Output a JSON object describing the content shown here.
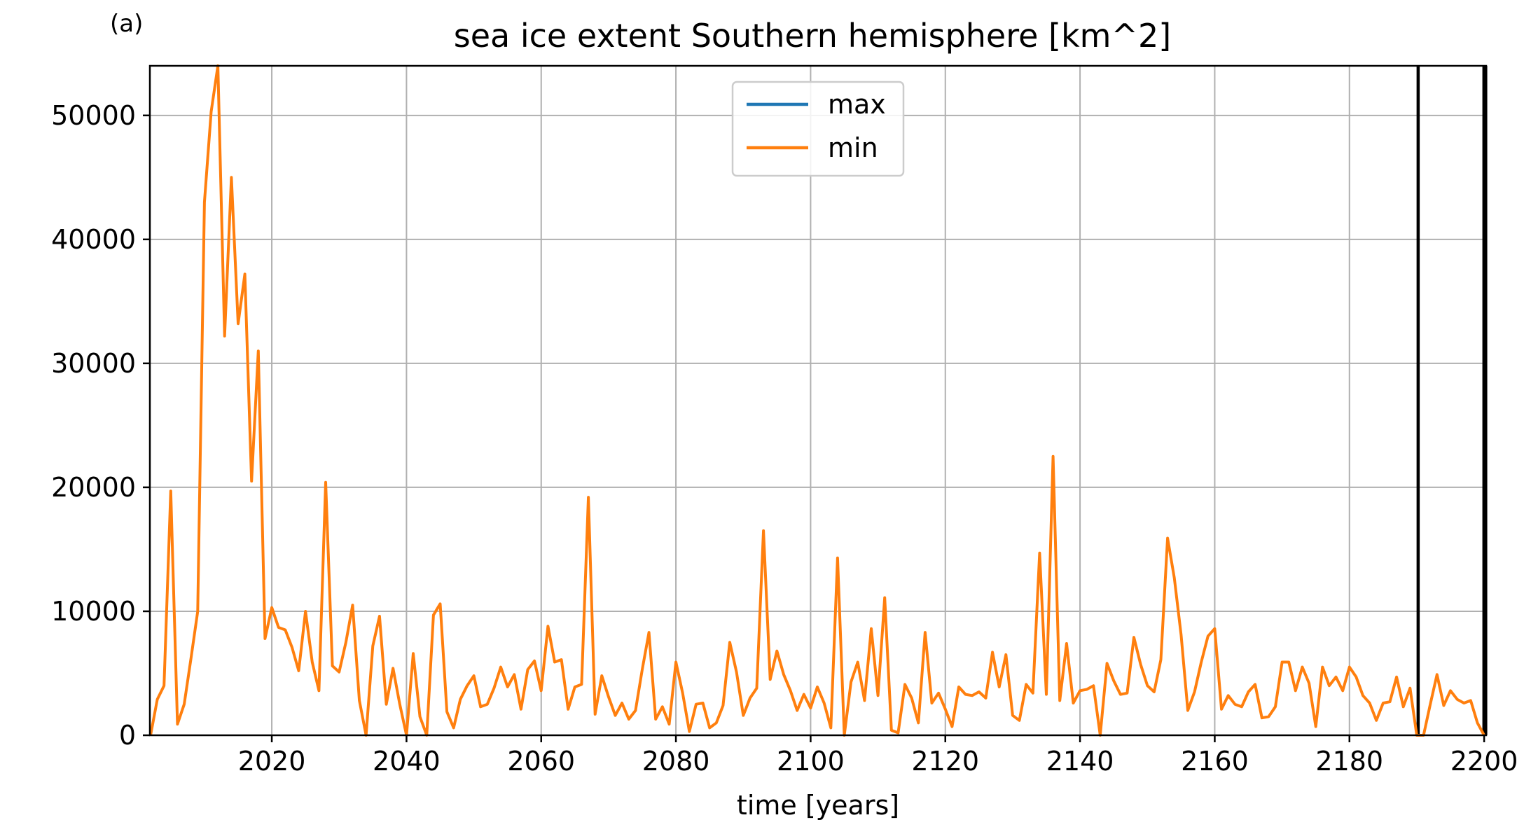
{
  "panel_label": "(a)",
  "chart_data": {
    "type": "line",
    "title": "sea ice extent Southern hemisphere [km^2]",
    "xlabel": "time [years]",
    "ylabel": "",
    "xlim": [
      2001.9,
      2200.3
    ],
    "ylim": [
      0,
      54000
    ],
    "x_ticks": [
      2020,
      2040,
      2060,
      2080,
      2100,
      2120,
      2140,
      2160,
      2180,
      2200
    ],
    "x_tick_labels": [
      "2020",
      "2040",
      "2060",
      "2080",
      "2100",
      "2120",
      "2140",
      "2160",
      "2180",
      "2200"
    ],
    "y_ticks": [
      0,
      10000,
      20000,
      30000,
      40000,
      50000
    ],
    "y_tick_labels": [
      "0",
      "10000",
      "20000",
      "30000",
      "40000",
      "50000"
    ],
    "grid": true,
    "legend_position": "top-center",
    "vertical_lines": [
      {
        "x": 2190.2,
        "color": "#000000"
      },
      {
        "x": 2200.1,
        "color": "#000000"
      }
    ],
    "series": [
      {
        "name": "max",
        "color": "#1f77b4",
        "x": [],
        "y": []
      },
      {
        "name": "min",
        "color": "#ff7f0e",
        "x": [
          2002,
          2003,
          2004,
          2005,
          2006,
          2007,
          2008,
          2009,
          2010,
          2011,
          2012,
          2013,
          2014,
          2015,
          2016,
          2017,
          2018,
          2019,
          2020,
          2021,
          2022,
          2023,
          2024,
          2025,
          2026,
          2027,
          2028,
          2029,
          2030,
          2031,
          2032,
          2033,
          2034,
          2035,
          2036,
          2037,
          2038,
          2039,
          2040,
          2041,
          2042,
          2043,
          2044,
          2045,
          2046,
          2047,
          2048,
          2049,
          2050,
          2051,
          2052,
          2053,
          2054,
          2055,
          2056,
          2057,
          2058,
          2059,
          2060,
          2061,
          2062,
          2063,
          2064,
          2065,
          2066,
          2067,
          2068,
          2069,
          2070,
          2071,
          2072,
          2073,
          2074,
          2075,
          2076,
          2077,
          2078,
          2079,
          2080,
          2081,
          2082,
          2083,
          2084,
          2085,
          2086,
          2087,
          2088,
          2089,
          2090,
          2091,
          2092,
          2093,
          2094,
          2095,
          2096,
          2097,
          2098,
          2099,
          2100,
          2101,
          2102,
          2103,
          2104,
          2105,
          2106,
          2107,
          2108,
          2109,
          2110,
          2111,
          2112,
          2113,
          2114,
          2115,
          2116,
          2117,
          2118,
          2119,
          2120,
          2121,
          2122,
          2123,
          2124,
          2125,
          2126,
          2127,
          2128,
          2129,
          2130,
          2131,
          2132,
          2133,
          2134,
          2135,
          2136,
          2137,
          2138,
          2139,
          2140,
          2141,
          2142,
          2143,
          2144,
          2145,
          2146,
          2147,
          2148,
          2149,
          2150,
          2151,
          2152,
          2153,
          2154,
          2155,
          2156,
          2157,
          2158,
          2159,
          2160,
          2161,
          2162,
          2163,
          2164,
          2165,
          2166,
          2167,
          2168,
          2169,
          2170,
          2171,
          2172,
          2173,
          2174,
          2175,
          2176,
          2177,
          2178,
          2179,
          2180,
          2181,
          2182,
          2183,
          2184,
          2185,
          2186,
          2187,
          2188,
          2189,
          2190,
          2191,
          2192,
          2193,
          2194,
          2195,
          2196,
          2197,
          2198,
          2199,
          2200
        ],
        "y": [
          0,
          2900,
          4000,
          19700,
          900,
          2500,
          6200,
          10000,
          43000,
          50300,
          54000,
          32200,
          45000,
          33200,
          37200,
          20500,
          31000,
          7800,
          10300,
          8700,
          8500,
          7100,
          5200,
          10000,
          5900,
          3600,
          20400,
          5600,
          5100,
          7500,
          10500,
          2800,
          0,
          7200,
          9600,
          2500,
          5400,
          2500,
          0,
          6600,
          1500,
          0,
          9700,
          10600,
          1900,
          600,
          2900,
          4000,
          4800,
          2300,
          2500,
          3800,
          5500,
          3900,
          4900,
          2100,
          5300,
          6000,
          3600,
          8800,
          5900,
          6100,
          2100,
          3900,
          4100,
          19200,
          1700,
          4800,
          3100,
          1600,
          2600,
          1300,
          2000,
          5300,
          8300,
          1300,
          2300,
          900,
          5900,
          3400,
          300,
          2500,
          2600,
          600,
          1000,
          2400,
          7500,
          5100,
          1600,
          3000,
          3800,
          16500,
          4500,
          6800,
          4900,
          3600,
          2000,
          3300,
          2200,
          3900,
          2600,
          600,
          14300,
          0,
          4300,
          5900,
          2800,
          8600,
          3200,
          11100,
          400,
          200,
          4100,
          3000,
          1000,
          8300,
          2600,
          3400,
          2100,
          700,
          3900,
          3300,
          3200,
          3500,
          3000,
          6700,
          3900,
          6500,
          1600,
          1200,
          4100,
          3400,
          14700,
          3300,
          22500,
          2800,
          7400,
          2600,
          3600,
          3700,
          4000,
          0,
          5800,
          4400,
          3300,
          3400,
          7900,
          5700,
          4000,
          3500,
          6100,
          15900,
          12700,
          8100,
          2000,
          3500,
          5900,
          8000,
          8600,
          2100,
          3200,
          2500,
          2300,
          3500,
          4100,
          1400,
          1500,
          2300,
          5900,
          5900,
          3600,
          5500,
          4200,
          700,
          5500,
          4000,
          4700,
          3600,
          5500,
          4700,
          3200,
          2600,
          1200,
          2600,
          2700,
          4700,
          2300,
          3800,
          0,
          0,
          2500,
          4900,
          2400,
          3600,
          2900,
          2600,
          2800,
          1000,
          0
        ]
      }
    ]
  }
}
